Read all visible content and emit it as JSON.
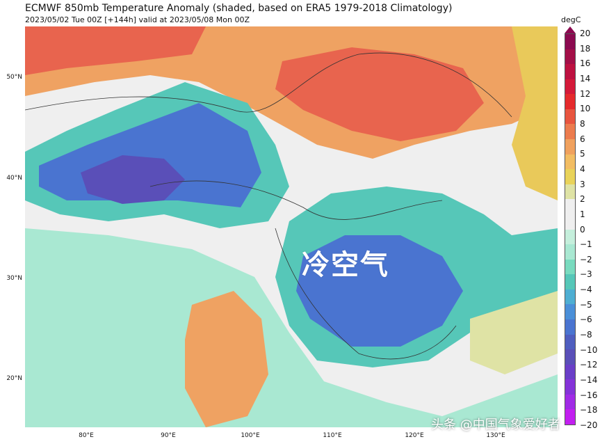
{
  "header": {
    "title": "ECMWF 850mb Temperature Anomaly (shaded, based on ERA5 1979-2018 Climatology)",
    "subtitle": "2023/05/02 Tue 00Z [+144h] valid at 2023/05/08 Mon 00Z"
  },
  "map": {
    "overlay_label": "冷空气",
    "lat_labels": [
      "50°N",
      "40°N",
      "30°N",
      "20°N"
    ],
    "lon_labels": [
      "80°E",
      "90°E",
      "100°E",
      "110°E",
      "120°E",
      "130°E"
    ],
    "colors": {
      "neutral": "#efefef",
      "cold_deep": "#5a4fb8",
      "cold_mid": "#4a74d0",
      "cold_light": "#56c7b8",
      "cold_pale": "#a9e8d2",
      "warm_pale": "#dfe3a5",
      "warm_mid": "#e9c95a",
      "warm_orange": "#efa262",
      "warm_red": "#e8644e"
    }
  },
  "colorbar": {
    "unit": "degC",
    "ticks": [
      "20",
      "18",
      "16",
      "14",
      "12",
      "10",
      "8",
      "6",
      "5",
      "4",
      "3",
      "2",
      "1",
      "0",
      "−1",
      "−2",
      "−3",
      "−4",
      "−5",
      "−6",
      "−8",
      "−10",
      "−12",
      "−14",
      "−16",
      "−18",
      "−20"
    ],
    "segment_colors": [
      "#8b0a50",
      "#a30f47",
      "#bd1140",
      "#d41a39",
      "#e52a2c",
      "#e8553f",
      "#ec7c4e",
      "#f0a15e",
      "#f2bd63",
      "#e9d35a",
      "#dfe3a5",
      "#efefef",
      "#efefef",
      "#c5efdc",
      "#a9e8d2",
      "#79dbbf",
      "#56c7b8",
      "#4eaed2",
      "#4a8fd8",
      "#4a74d0",
      "#4f5ebf",
      "#5a4fb8",
      "#6a3fc8",
      "#8433d8",
      "#a02be6",
      "#c21ff0"
    ]
  },
  "watermark": "头条 @中国气象爱好者"
}
